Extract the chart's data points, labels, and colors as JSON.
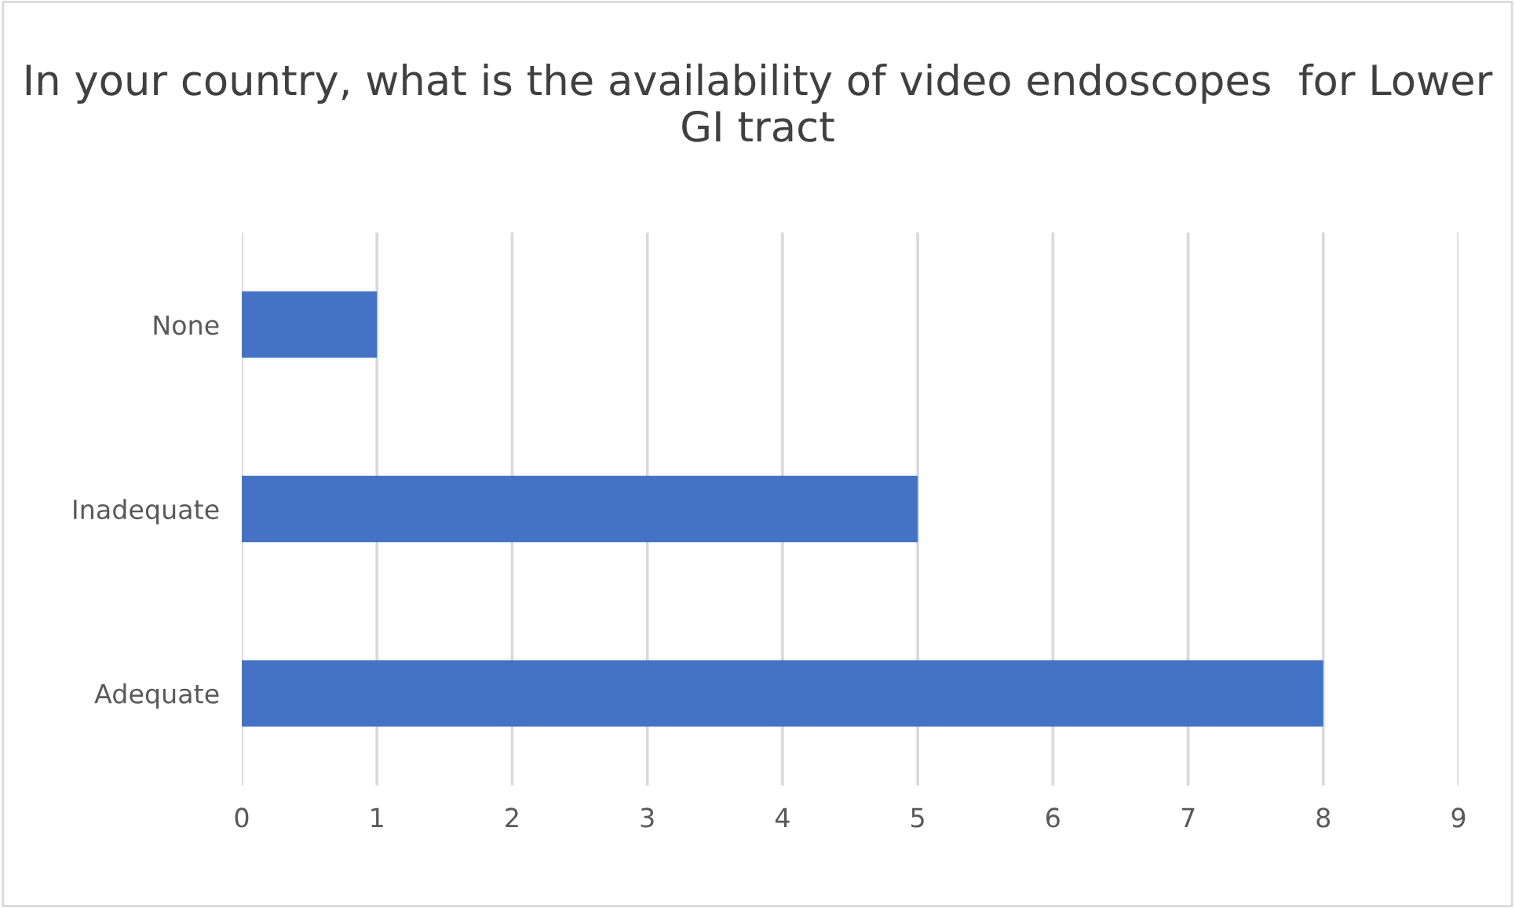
{
  "chart_data": {
    "type": "bar",
    "orientation": "horizontal",
    "title": "In your country, what is the availability of video endoscopes  for Lower GI tract",
    "categories": [
      "None",
      "Inadequate",
      "Adequate"
    ],
    "values": [
      1,
      5,
      8
    ],
    "color": "#4472c4",
    "xlim": [
      0,
      9
    ],
    "xticks": [
      0,
      1,
      2,
      3,
      4,
      5,
      6,
      7,
      8,
      9
    ],
    "grid": "x",
    "legend": false
  }
}
